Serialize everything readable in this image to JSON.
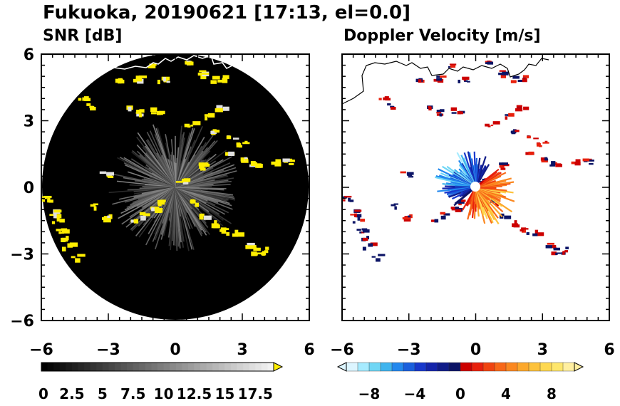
{
  "title": "Fukuoka, 20190621 [17:13, el=0.0]",
  "chart_data": [
    {
      "type": "heatmap",
      "title": "SNR [dB]",
      "xlim": [
        -6,
        6
      ],
      "ylim": [
        -6,
        6
      ],
      "x_ticks": [
        "−6",
        "−3",
        "0",
        "3",
        "6"
      ],
      "y_ticks": [
        "6",
        "3",
        "0",
        "−3",
        "−6"
      ],
      "x_tick_values": [
        -6,
        -3,
        0,
        3,
        6
      ],
      "y_tick_values": [
        6,
        3,
        0,
        -3,
        -6
      ],
      "range_radius": 6,
      "colorbar": {
        "min": 0,
        "max": 19,
        "tick_values": [
          0,
          2.5,
          5,
          7.5,
          10,
          12.5,
          15,
          17.5
        ],
        "tick_labels": [
          "0",
          "2.5",
          "5",
          "7.5",
          "10",
          "12.5",
          "15",
          "17.5"
        ],
        "low_color": "#000000",
        "high_color": "#f2f2f2",
        "extend_color": "#ffee00"
      },
      "echo_color": "#ffee00",
      "background_color": "#000000"
    },
    {
      "type": "heatmap",
      "title": "Doppler Velocity [m/s]",
      "xlim": [
        -6,
        6
      ],
      "ylim": [
        -6,
        6
      ],
      "x_ticks": [
        "−6",
        "−3",
        "0",
        "3",
        "6"
      ],
      "y_ticks": [
        "6",
        "3",
        "0",
        "−3",
        "−6"
      ],
      "x_tick_values": [
        -6,
        -3,
        0,
        3,
        6
      ],
      "y_tick_values": [
        6,
        3,
        0,
        -3,
        -6
      ],
      "colorbar": {
        "min": -10,
        "max": 10,
        "tick_values": [
          -8,
          -4,
          0,
          4,
          8
        ],
        "tick_labels": [
          "−8",
          "−4",
          "0",
          "4",
          "8"
        ],
        "colors": [
          "#dcf5ff",
          "#a6ebff",
          "#6fd6f5",
          "#3fb4ee",
          "#2288ee",
          "#1a5fdd",
          "#1838cc",
          "#1424aa",
          "#101c88",
          "#0c1466",
          "#cc0000",
          "#e8200c",
          "#f04410",
          "#f86818",
          "#fb8820",
          "#fca82c",
          "#fdc23c",
          "#fed850",
          "#fee66c",
          "#ffefa0"
        ]
      }
    }
  ]
}
